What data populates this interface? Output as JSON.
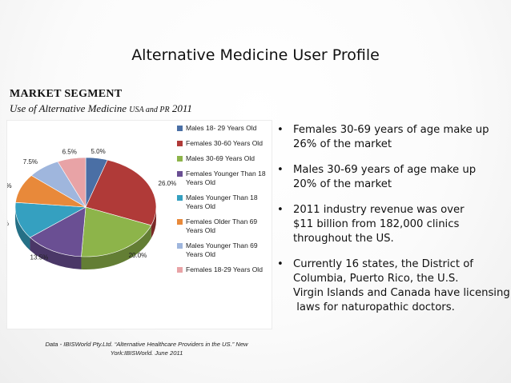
{
  "slide": {
    "title": "Alternative Medicine User Profile",
    "segment_heading": "MARKET SEGMENT",
    "segment_sub_a": "Use of Alternative Medicine ",
    "segment_sub_b": "USA and PR",
    "segment_sub_c": " 2011",
    "source_line1": "Data - IBISWorld Pty.Ltd. “Alternative Healthcare Providers in the US.” New",
    "source_line2": "York:IBISWorld. June 2011"
  },
  "bullets": [
    {
      "lines": [
        "Females 30-69 years of age make up",
        "26% of the market"
      ]
    },
    {
      "lines": [
        "Males 30-69 years of age make up",
        "20% of the market"
      ]
    },
    {
      "lines": [
        "2011 industry revenue was over",
        "$11 billion from 182,000 clinics",
        "throughout the US."
      ]
    },
    {
      "lines": [
        "Currently 16 states, the District of",
        "Columbia, Puerto Rico, the U.S.",
        "Virgin Islands and Canada have licensing",
        " laws for naturopathic doctors."
      ]
    }
  ],
  "chart_data": {
    "type": "pie",
    "title": "",
    "legend_position": "right",
    "slices": [
      {
        "name": "Males 18- 29 Years Old",
        "value": 5.0,
        "label": "5.0%",
        "color": "#4a6fa5"
      },
      {
        "name": "Females 30-60 Years Old",
        "value": 26.0,
        "label": "26.0%",
        "color": "#b03a38"
      },
      {
        "name": "Males 30-69 Years Old",
        "value": 20.0,
        "label": "20.0%",
        "color": "#8db44a"
      },
      {
        "name": "Females Younger Than 18 Years Old",
        "value": 13.5,
        "label": "13.5%",
        "color": "#6a4f93"
      },
      {
        "name": "Males Younger Than 18 Years Old",
        "value": 12.0,
        "label": "12.0%",
        "color": "#35a0c0"
      },
      {
        "name": "Females Older Than 69 Years Old",
        "value": 9.5,
        "label": "9.5%",
        "color": "#e8893a"
      },
      {
        "name": "Males Younger Than 69 Years Old",
        "value": 7.5,
        "label": "7.5%",
        "color": "#9fb6dd"
      },
      {
        "name": "Females 18-29 Years Old",
        "value": 6.5,
        "label": "6.5%",
        "color": "#e8a3a6"
      }
    ]
  }
}
